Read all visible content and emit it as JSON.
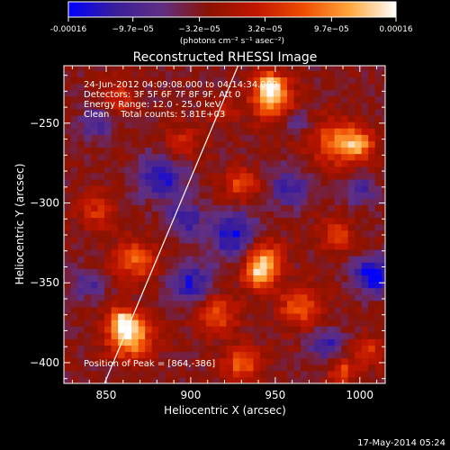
{
  "chart_data": {
    "type": "heatmap",
    "title": "Reconstructed RHESSI Image",
    "xlabel": "Heliocentric X (arcsec)",
    "ylabel": "Heliocentric Y (arcsec)",
    "xlim": [
      825,
      1015
    ],
    "ylim": [
      -413,
      -214
    ],
    "xticks": [
      850,
      900,
      950,
      1000
    ],
    "yticks": [
      -250,
      -300,
      -350,
      -400
    ],
    "colorbar": {
      "vmin": -0.00016,
      "vmax": 0.00016,
      "ticks": [
        -0.00016,
        -9.7e-05,
        -3.2e-05,
        3.2e-05,
        9.7e-05,
        0.00016
      ],
      "tick_labels": [
        "-0.00016",
        "−9.7e−05",
        "−3.2e−05",
        "3.2e−05",
        "9.7e−05",
        "0.00016"
      ],
      "label": "(photons cm⁻² s⁻¹ asec⁻²)",
      "colormap": [
        "#0000ff",
        "#3a1d9a",
        "#602f83",
        "#8a1200",
        "#c01500",
        "#ee4b00",
        "#ffa63a",
        "#ffffff"
      ]
    },
    "annotations": [
      "24-Jun-2012 04:09:08.000 to 04:14:34.000",
      "Detectors: 3F 5F 6F 7F 8F 9F, Att 0",
      "Energy Range: 12.0 - 25.0 keV",
      "Clean    Total counts: 5.81E+03"
    ],
    "peak_label": "Position of Peak = [864,-386]",
    "peak": {
      "x": 864,
      "y": -386
    },
    "limb_line": [
      [
        849,
        -413
      ],
      [
        928,
        -214
      ]
    ],
    "grid": false,
    "pixel_size_arcsec": 4,
    "blobs": [
      {
        "x": 948,
        "y": -235,
        "r": 13,
        "v": 0.00013
      },
      {
        "x": 947,
        "y": -226,
        "r": 8,
        "v": 0.00012
      },
      {
        "x": 986,
        "y": -262,
        "r": 14,
        "v": 0.00011
      },
      {
        "x": 1000,
        "y": -263,
        "r": 9,
        "v": 0.00012
      },
      {
        "x": 895,
        "y": -262,
        "r": 12,
        "v": 6e-05
      },
      {
        "x": 858,
        "y": -234,
        "r": 10,
        "v": 7e-05
      },
      {
        "x": 930,
        "y": -288,
        "r": 10,
        "v": 9e-05
      },
      {
        "x": 845,
        "y": -305,
        "r": 11,
        "v": 7e-05
      },
      {
        "x": 867,
        "y": -336,
        "r": 13,
        "v": 0.0001
      },
      {
        "x": 942,
        "y": -334,
        "r": 12,
        "v": 0.00012
      },
      {
        "x": 941,
        "y": -345,
        "r": 9,
        "v": 0.00013
      },
      {
        "x": 986,
        "y": -320,
        "r": 10,
        "v": 8e-05
      },
      {
        "x": 916,
        "y": -370,
        "r": 12,
        "v": 9e-05
      },
      {
        "x": 864,
        "y": -384,
        "r": 13,
        "v": 0.00016
      },
      {
        "x": 860,
        "y": -373,
        "r": 8,
        "v": 0.00012
      },
      {
        "x": 930,
        "y": -400,
        "r": 10,
        "v": 0.00011
      },
      {
        "x": 965,
        "y": -365,
        "r": 13,
        "v": 0.0001
      },
      {
        "x": 1005,
        "y": -393,
        "r": 9,
        "v": 8e-05
      },
      {
        "x": 990,
        "y": -405,
        "r": 8,
        "v": 9e-05
      },
      {
        "x": 918,
        "y": -243,
        "r": 9,
        "v": 5e-05
      },
      {
        "x": 883,
        "y": -283,
        "r": 14,
        "v": -0.00011
      },
      {
        "x": 926,
        "y": -320,
        "r": 14,
        "v": -0.00012
      },
      {
        "x": 897,
        "y": -310,
        "r": 10,
        "v": -9e-05
      },
      {
        "x": 958,
        "y": -290,
        "r": 12,
        "v": -8e-05
      },
      {
        "x": 1008,
        "y": -345,
        "r": 11,
        "v": -0.00014
      },
      {
        "x": 1000,
        "y": -292,
        "r": 9,
        "v": -7e-05
      },
      {
        "x": 980,
        "y": -388,
        "r": 10,
        "v": -9e-05
      },
      {
        "x": 900,
        "y": -350,
        "r": 12,
        "v": -0.0001
      },
      {
        "x": 845,
        "y": -250,
        "r": 10,
        "v": -8e-05
      },
      {
        "x": 840,
        "y": -350,
        "r": 9,
        "v": -7e-05
      },
      {
        "x": 963,
        "y": -248,
        "r": 7,
        "v": -6e-05
      }
    ]
  },
  "footer": {
    "timestamp": "17-May-2014 05:24"
  }
}
